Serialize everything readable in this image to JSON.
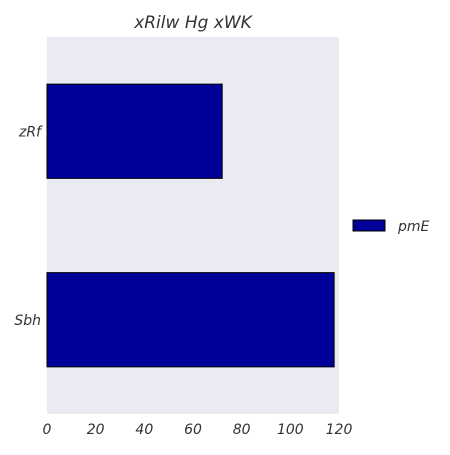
{
  "chart_data": {
    "type": "bar",
    "orientation": "horizontal",
    "title": "xRilw Hg xWK",
    "xlabel": "",
    "ylabel": "",
    "categories": [
      "zRf",
      "Sbh"
    ],
    "series": [
      {
        "name": "pmE",
        "values": [
          72,
          118
        ],
        "color": "#000099"
      }
    ],
    "xlim": [
      0,
      120
    ],
    "xticks": [
      0,
      20,
      40,
      60,
      80,
      100,
      120
    ],
    "grid": false,
    "legend_position": "right",
    "background": "#eaeaf2"
  }
}
